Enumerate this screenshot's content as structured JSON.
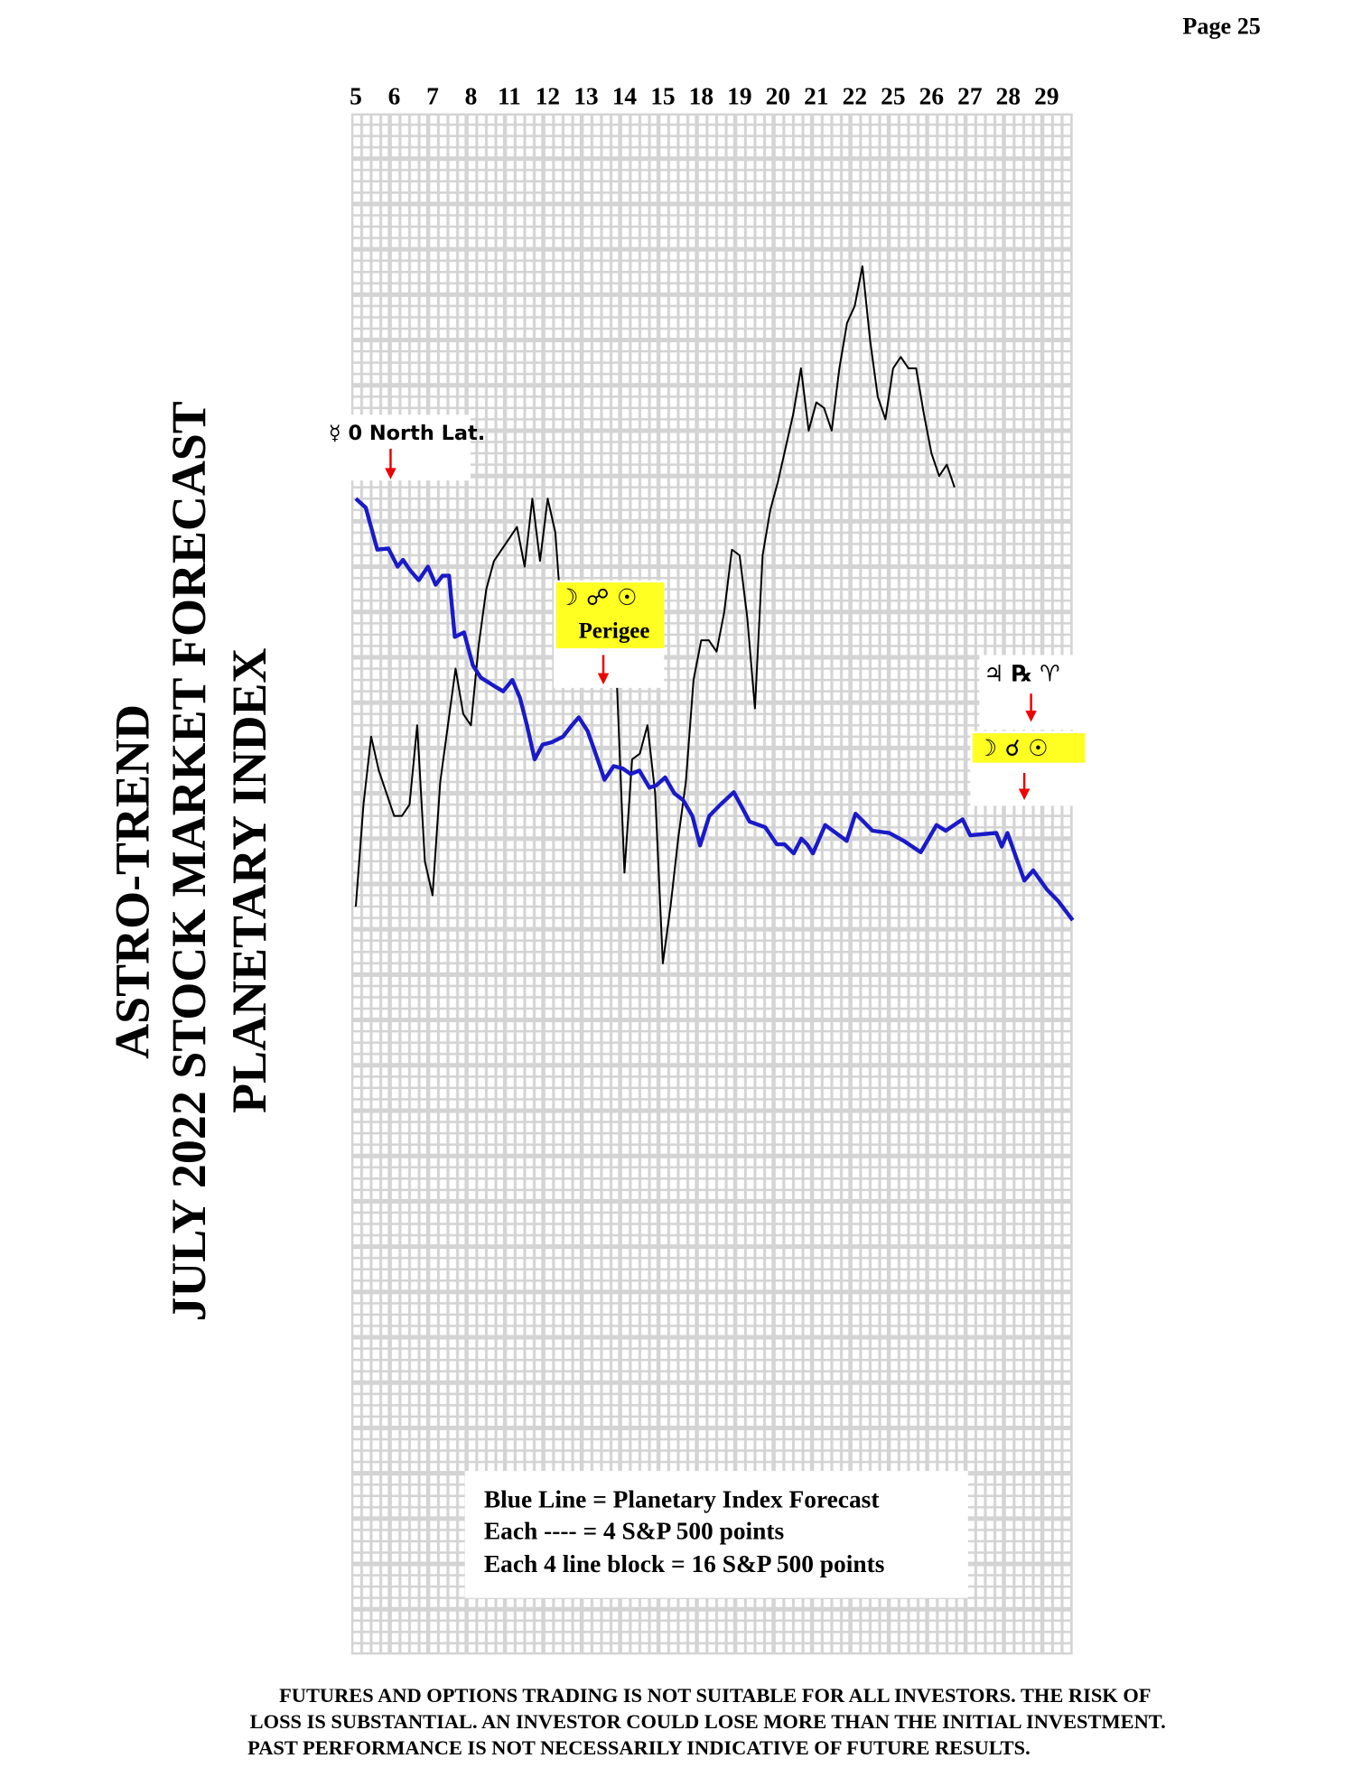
{
  "page_number": "Page  25",
  "chart_data": {
    "type": "line",
    "title_lines": [
      "ASTRO-TREND",
      "JULY 2022  STOCK MARKET FORECAST",
      "PLANETARY INDEX"
    ],
    "categories": [
      "5",
      "6",
      "7",
      "8",
      "11",
      "12",
      "13",
      "14",
      "15",
      "18",
      "19",
      "20",
      "21",
      "22",
      "25",
      "26",
      "27",
      "28",
      "29"
    ],
    "xlim": [
      -0.12,
      18.68
    ],
    "ylim": [
      0,
      544
    ],
    "series": [
      {
        "name": "Blue Line = Planetary Index Forecast",
        "color": "#1a1ac8",
        "x": [
          0,
          0.26,
          0.56,
          0.85,
          1.09,
          1.23,
          1.41,
          1.64,
          1.88,
          2.08,
          2.26,
          2.43,
          2.58,
          2.82,
          3.05,
          3.26,
          3.64,
          3.84,
          4.08,
          4.28,
          4.46,
          4.66,
          4.87,
          5.1,
          5.4,
          5.63,
          5.81,
          6.04,
          6.28,
          6.48,
          6.72,
          6.95,
          7.16,
          7.39,
          7.65,
          7.83,
          8.06,
          8.3,
          8.53,
          8.77,
          8.97,
          9.21,
          9.5,
          9.85,
          10.26,
          10.67,
          10.97,
          11.17,
          11.41,
          11.61,
          11.76,
          11.91,
          12.23,
          12.43,
          12.79,
          13.02,
          13.23,
          13.46,
          13.9,
          14.28,
          14.72,
          15.13,
          15.37,
          15.81,
          16.01,
          16.69,
          16.83,
          16.98,
          17.21,
          17.42,
          17.65,
          18.01,
          18.3,
          18.68
        ],
        "values": [
          408,
          404.8,
          390,
          390.4,
          384,
          386.4,
          382.8,
          379.2,
          384,
          377.6,
          380.8,
          380.8,
          359.2,
          360.8,
          349.2,
          344.8,
          341.6,
          340,
          344,
          337.6,
          328,
          316,
          321.2,
          322,
          324,
          328,
          330.8,
          326,
          316.8,
          308.8,
          313.6,
          312.8,
          310.8,
          312,
          306,
          306.8,
          309.6,
          304,
          301.6,
          296,
          285.6,
          296,
          300,
          304.4,
          294,
          292,
          286,
          286,
          282.8,
          288,
          286,
          282.8,
          292.8,
          290.8,
          287.2,
          296.8,
          294,
          290.8,
          290,
          287.2,
          283.2,
          292.8,
          290.8,
          294.8,
          289.2,
          290,
          285.2,
          290,
          281.2,
          273.2,
          276.8,
          270,
          266,
          259.2
        ]
      },
      {
        "color": "#000000",
        "x": [
          0,
          0.2,
          0.4,
          0.6,
          0.8,
          1,
          1.2,
          1.4,
          1.6,
          1.8,
          2,
          2.2,
          2.4,
          2.6,
          2.8,
          3,
          3.2,
          3.4,
          3.6,
          3.8,
          4,
          4.2,
          4.4,
          4.6,
          4.8,
          5,
          5.2,
          5.4,
          5.6,
          5.8,
          6,
          6.2,
          6.4,
          6.6,
          6.8,
          7,
          7.2,
          7.4,
          7.6,
          7.8,
          8,
          8.2,
          8.4,
          8.6,
          8.8,
          9,
          9.2,
          9.4,
          9.6,
          9.8,
          10,
          10.2,
          10.4,
          10.6,
          10.8,
          11,
          11.2,
          11.4,
          11.6,
          11.8,
          12,
          12.2,
          12.4,
          12.6,
          12.8,
          13,
          13.2,
          13.4,
          13.6,
          13.8,
          14,
          14.2,
          14.4,
          14.6,
          14.8,
          15,
          15.2,
          15.4,
          15.6
        ],
        "values": [
          264,
          300,
          324,
          312,
          304,
          296,
          296,
          300,
          328,
          280,
          268,
          308,
          328,
          348,
          332,
          328,
          356,
          376,
          386,
          390,
          394,
          398,
          384,
          408,
          386,
          408,
          396,
          358,
          366,
          358,
          362,
          366,
          360,
          354,
          344,
          276,
          316,
          318,
          328,
          304,
          244,
          264,
          288,
          308,
          344,
          358,
          358,
          354,
          368,
          390,
          388,
          366,
          334,
          388,
          404,
          414,
          426,
          438,
          454,
          432,
          442,
          440,
          432,
          454,
          470,
          476,
          490,
          464,
          444,
          436,
          454,
          458,
          454,
          454,
          438,
          424,
          416,
          420,
          412
        ]
      }
    ],
    "legend_notes": [
      "Each ---- =   4 S&P 500 points",
      "Each 4 line block =  16  S&P 500 points"
    ],
    "annotations": [
      "☿ 0 North Lat.",
      "☽ ☍ ☉",
      "Perigee",
      "♃ ℞ ♈",
      "☽ ☌ ☉"
    ]
  },
  "disclaimer": [
    "FUTURES AND OPTIONS TRADING IS NOT SUITABLE FOR ALL INVESTORS.  THE RISK OF",
    "LOSS IS SUBSTANTIAL.  AN INVESTOR COULD LOSE MORE THAN THE INITIAL INVESTMENT.",
    "PAST PERFORMANCE IS NOT NECESSARILY INDICATIVE OF FUTURE RESULTS."
  ]
}
